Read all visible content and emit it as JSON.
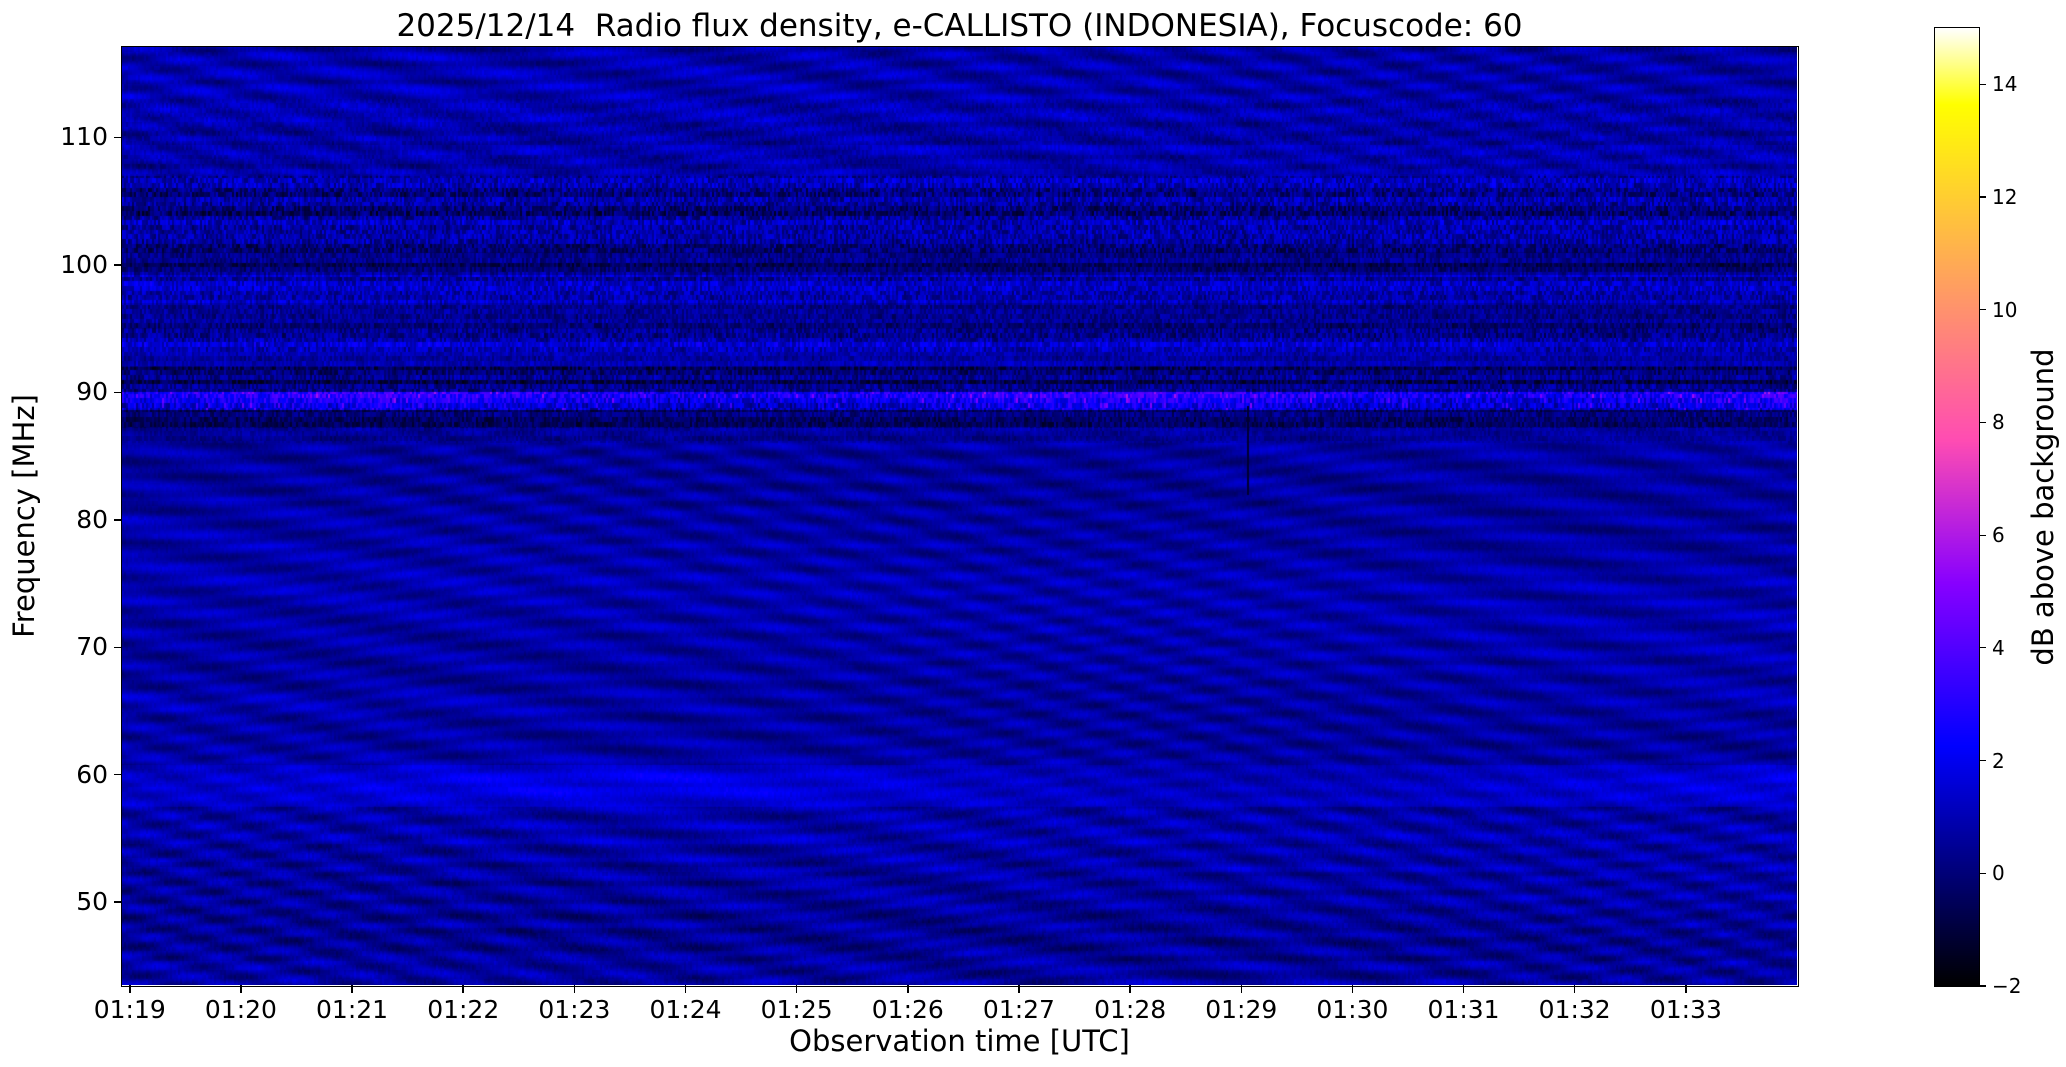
{
  "chart_data": {
    "type": "heatmap",
    "title": "2025/12/14  Radio flux density, e-CALLISTO (INDONESIA), Focuscode: 60",
    "xlabel": "Observation time [UTC]",
    "ylabel": "Frequency [MHz]",
    "x_ticks": [
      "01:19",
      "01:20",
      "01:21",
      "01:22",
      "01:23",
      "01:24",
      "01:25",
      "01:26",
      "01:27",
      "01:28",
      "01:29",
      "01:30",
      "01:31",
      "01:32",
      "01:33"
    ],
    "x_tick_minutes": [
      79,
      80,
      81,
      82,
      83,
      84,
      85,
      86,
      87,
      88,
      89,
      90,
      91,
      92,
      93
    ],
    "x_min_minutes": 78.93,
    "x_max_minutes": 94.0,
    "y_ticks": [
      "110",
      "100",
      "90",
      "80",
      "70",
      "60",
      "50"
    ],
    "y_tick_values": [
      110,
      100,
      90,
      80,
      70,
      60,
      50
    ],
    "freq_min_mhz": 43.5,
    "freq_max_mhz": 117.1,
    "grid": false,
    "colorbar": {
      "label": "dB above background",
      "ticks": [
        "14",
        "12",
        "10",
        "8",
        "6",
        "4",
        "2",
        "0",
        "−2"
      ],
      "tick_values": [
        14,
        12,
        10,
        8,
        6,
        4,
        2,
        0,
        -2
      ],
      "range": [
        -2,
        15
      ],
      "colormap": "gnuplot2",
      "position": "right"
    },
    "content_summary": "Quiet solar radio spectrogram: dark navy background (~0-1 dB) with diagonal wavy interference fringes, horizontal RFI speckle bands near 101-107 MHz, 97-99 MHz and 93-95 MHz, a bright FM broadcast band near 89 MHz flanked by dark over-subtracted channels, and faint brighter patches near 59-60 MHz.",
    "bands": [
      {
        "f_lo": 43.5,
        "f_hi": 57.5,
        "mean_db": 0.7,
        "speckle": 0.2,
        "wave": 0.55
      },
      {
        "f_lo": 57.5,
        "f_hi": 60.8,
        "mean_db": 1.0,
        "speckle": 0.15,
        "wave": 0.35,
        "patches": true
      },
      {
        "f_lo": 60.8,
        "f_hi": 86.0,
        "mean_db": 0.75,
        "speckle": 0.12,
        "wave": 0.5
      },
      {
        "f_lo": 86.0,
        "f_hi": 87.2,
        "mean_db": 0.55,
        "speckle": 0.35,
        "wave": 0.25
      },
      {
        "f_lo": 87.2,
        "f_hi": 88.6,
        "mean_db": -0.15,
        "speckle": 0.7,
        "wave": 0.1
      },
      {
        "f_lo": 88.6,
        "f_hi": 90.0,
        "mean_db": 1.6,
        "speckle": 1.1,
        "wave": 0.1,
        "fm": true
      },
      {
        "f_lo": 90.0,
        "f_hi": 92.0,
        "mean_db": -0.25,
        "speckle": 0.85,
        "wave": 0.1
      },
      {
        "f_lo": 92.0,
        "f_hi": 93.2,
        "mean_db": 0.45,
        "speckle": 0.55,
        "wave": 0.15
      },
      {
        "f_lo": 93.2,
        "f_hi": 95.0,
        "mean_db": 0.8,
        "speckle": 0.9,
        "wave": 0.1
      },
      {
        "f_lo": 95.0,
        "f_hi": 97.0,
        "mean_db": 0.35,
        "speckle": 0.7,
        "wave": 0.1
      },
      {
        "f_lo": 97.0,
        "f_hi": 99.2,
        "mean_db": 0.8,
        "speckle": 0.9,
        "wave": 0.1
      },
      {
        "f_lo": 99.2,
        "f_hi": 101.0,
        "mean_db": 0.1,
        "speckle": 0.7,
        "wave": 0.1
      },
      {
        "f_lo": 101.0,
        "f_hi": 107.0,
        "mean_db": 0.5,
        "speckle": 1.0,
        "wave": 0.1
      },
      {
        "f_lo": 107.0,
        "f_hi": 113.0,
        "mean_db": 0.7,
        "speckle": 0.35,
        "wave": 0.45
      },
      {
        "f_lo": 113.0,
        "f_hi": 117.1,
        "mean_db": 0.9,
        "speckle": 0.2,
        "wave": 0.55
      }
    ]
  }
}
